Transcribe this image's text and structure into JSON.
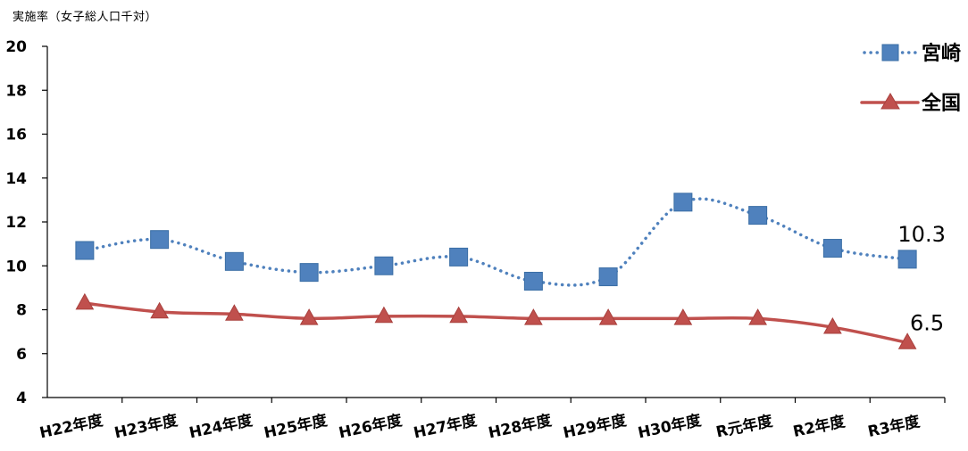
{
  "chart_data": {
    "type": "line",
    "ylabel": "実施率（女子総人口千対）",
    "xlabel": "",
    "ylim": [
      4,
      20
    ],
    "yticks": [
      4,
      6,
      8,
      10,
      12,
      14,
      16,
      18,
      20
    ],
    "categories": [
      "H22年度",
      "H23年度",
      "H24年度",
      "H25年度",
      "H26年度",
      "H27年度",
      "H28年度",
      "H29年度",
      "H30年度",
      "R元年度",
      "R2年度",
      "R3年度"
    ],
    "series": [
      {
        "name": "宮崎",
        "values": [
          10.7,
          11.2,
          10.2,
          9.7,
          10.0,
          10.4,
          9.3,
          9.5,
          12.9,
          12.3,
          10.8,
          10.3
        ],
        "color": "#4f81bd",
        "line_style": "dotted",
        "marker": "square"
      },
      {
        "name": "全国",
        "values": [
          8.3,
          7.9,
          7.8,
          7.6,
          7.7,
          7.7,
          7.6,
          7.6,
          7.6,
          7.6,
          7.2,
          6.5
        ],
        "color": "#c0504d",
        "line_style": "solid",
        "marker": "triangle"
      }
    ],
    "end_labels": [
      "10.3",
      "6.5"
    ],
    "grid": false,
    "legend_position": "top-right"
  }
}
